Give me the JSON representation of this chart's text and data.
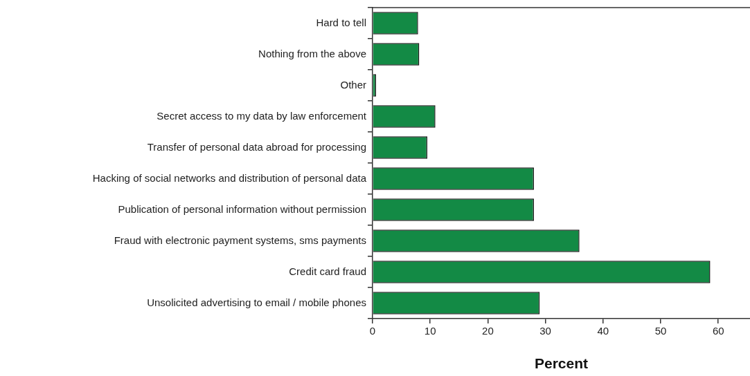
{
  "chart_data": {
    "type": "bar",
    "orientation": "horizontal",
    "xlabel": "Percent",
    "categories": [
      "Hard to tell",
      "Nothing from the above",
      "Other",
      "Secret access to my data by law enforcement",
      "Transfer of personal data abroad for processing",
      "Hacking of social networks and distribution of personal data",
      "Publication of personal information without permission",
      "Fraud with electronic payment systems, sms payments",
      "Credit card fraud",
      "Unsolicited advertising to email / mobile phones"
    ],
    "values": [
      7.9,
      8.1,
      0.6,
      10.9,
      9.5,
      28.0,
      28.0,
      35.9,
      58.6,
      29.0
    ],
    "color": "#138a45",
    "xlim": [
      0,
      65.5
    ],
    "xticks": [
      0,
      10,
      20,
      30,
      40,
      50,
      60
    ],
    "grid": false,
    "legend": false
  }
}
